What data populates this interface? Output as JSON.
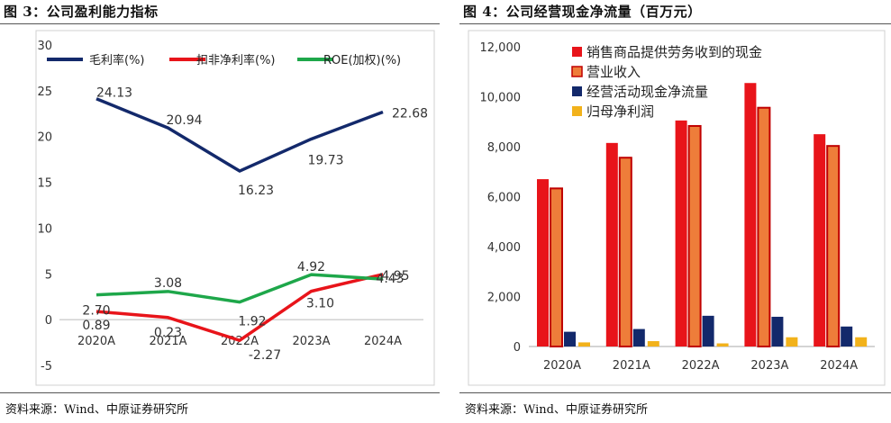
{
  "left": {
    "figure_title": "图 3：公司盈利能力指标",
    "source": "资料来源：Wind、中原证券研究所"
  },
  "right": {
    "figure_title": "图 4：公司经营现金净流量（百万元）",
    "source": "资料来源：Wind、中原证券研究所"
  },
  "chart_data": [
    {
      "type": "line",
      "title": "",
      "categories": [
        "2020A",
        "2021A",
        "2022A",
        "2023A",
        "2024A"
      ],
      "ylim": [
        -5,
        30
      ],
      "yticks": [
        "30",
        "25",
        "20",
        "15",
        "10",
        "5",
        "0",
        "-5"
      ],
      "grid": false,
      "legend": "top",
      "series": [
        {
          "name": "毛利率(%)",
          "color": "#13296b",
          "values": [
            24.13,
            20.94,
            16.23,
            19.73,
            22.68
          ],
          "labels": [
            "24.13",
            "20.94",
            "16.23",
            "19.73",
            "22.68"
          ]
        },
        {
          "name": "扣非净利率(%)",
          "color": "#e8141a",
          "values": [
            0.89,
            0.23,
            -2.27,
            3.1,
            4.95
          ],
          "labels": [
            "0.89",
            "0.23",
            "-2.27",
            "3.10",
            "4.95"
          ]
        },
        {
          "name": "ROE(加权)(%)",
          "color": "#1ea74a",
          "values": [
            2.7,
            3.08,
            1.92,
            4.92,
            4.43
          ],
          "labels": [
            "2.70",
            "3.08",
            "1.92",
            "4.92",
            "4.43"
          ]
        }
      ]
    },
    {
      "type": "bar",
      "title": "",
      "categories": [
        "2020A",
        "2021A",
        "2022A",
        "2023A",
        "2024A"
      ],
      "ylim": [
        0,
        12000
      ],
      "yticks": [
        "12,000",
        "10,000",
        "8,000",
        "6,000",
        "4,000",
        "2,000",
        "0"
      ],
      "grid": false,
      "legend": "top-left",
      "series": [
        {
          "name": "销售商品提供劳务收到的现金",
          "color": "#e8141a",
          "values": [
            6700,
            8150,
            9050,
            10550,
            8500
          ]
        },
        {
          "name": "营业收入",
          "color": "#ee7d3a",
          "values": [
            6330,
            7560,
            8830,
            9560,
            8030
          ]
        },
        {
          "name": "经营活动现金净流量",
          "color": "#13296b",
          "values": [
            590,
            700,
            1230,
            1190,
            800
          ]
        },
        {
          "name": "归母净利润",
          "color": "#f2b21b",
          "values": [
            165,
            215,
            125,
            370,
            370
          ]
        }
      ]
    }
  ]
}
